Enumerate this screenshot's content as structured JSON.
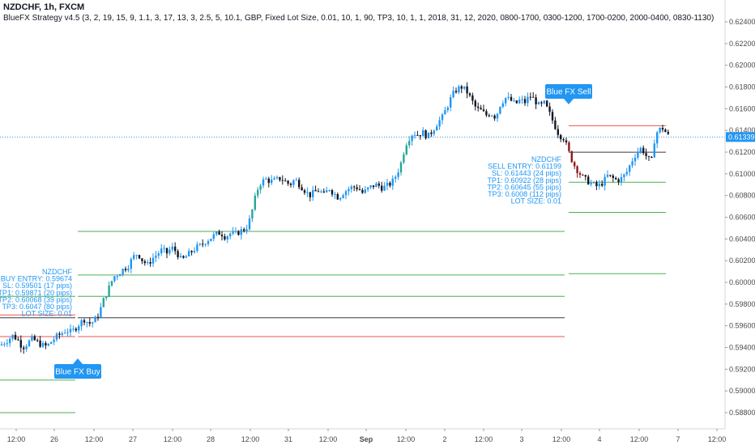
{
  "header": {
    "title": "NZDCHF, 1h, FXCM",
    "strategy": "BlueFX Strategy v4.5 (3, 2, 19, 15, 9, 1.1, 3, 17, 13, 3, 2.5, 5, 10.1, GBP, Fixed Lot Size, 0.01, 10, 1, 90, TP3, 10, 1, 1, 2018, 31, 12, 2020, 0800-1700, 0300-1200, 1700-0200, 2000-0400, 0830-1130)"
  },
  "chart_data": {
    "type": "candlestick",
    "symbol": "NZDCHF",
    "interval": "1h",
    "y_ticks": [
      "0.62400",
      "0.62200",
      "0.62000",
      "0.61800",
      "0.61600",
      "0.61400",
      "0.61200",
      "0.61000",
      "0.60800",
      "0.60600",
      "0.60400",
      "0.60200",
      "0.60000",
      "0.59800",
      "0.59600",
      "0.59400",
      "0.59200",
      "0.59000",
      "0.58800"
    ],
    "x_ticks": [
      {
        "label": "12:00",
        "bold": false
      },
      {
        "label": "26",
        "bold": false
      },
      {
        "label": "12:00",
        "bold": false
      },
      {
        "label": "27",
        "bold": false
      },
      {
        "label": "12:00",
        "bold": false
      },
      {
        "label": "28",
        "bold": false
      },
      {
        "label": "12:00",
        "bold": false
      },
      {
        "label": "31",
        "bold": false
      },
      {
        "label": "12:00",
        "bold": false
      },
      {
        "label": "Sep",
        "bold": true
      },
      {
        "label": "12:00",
        "bold": false
      },
      {
        "label": "2",
        "bold": false
      },
      {
        "label": "12:00",
        "bold": false
      },
      {
        "label": "3",
        "bold": false
      },
      {
        "label": "12:00",
        "bold": false
      },
      {
        "label": "4",
        "bold": false
      },
      {
        "label": "12:00",
        "bold": false
      },
      {
        "label": "7",
        "bold": false
      },
      {
        "label": "12:00",
        "bold": false
      }
    ],
    "ylim": [
      0.5874,
      0.6256
    ],
    "current_price": "0.61339",
    "path_points": [
      [
        0,
        0.5942
      ],
      [
        8,
        0.5946
      ],
      [
        16,
        0.5951
      ],
      [
        22,
        0.5947
      ],
      [
        28,
        0.594
      ],
      [
        34,
        0.5944
      ],
      [
        40,
        0.5948
      ],
      [
        46,
        0.5945
      ],
      [
        52,
        0.5942
      ],
      [
        58,
        0.5941
      ],
      [
        64,
        0.5946
      ],
      [
        70,
        0.595
      ],
      [
        76,
        0.5953
      ],
      [
        82,
        0.5956
      ],
      [
        88,
        0.5954
      ],
      [
        92,
        0.5957
      ],
      [
        98,
        0.5962
      ],
      [
        104,
        0.5966
      ],
      [
        110,
        0.5962
      ],
      [
        116,
        0.5964
      ],
      [
        122,
        0.5971
      ],
      [
        128,
        0.5984
      ],
      [
        134,
        0.5994
      ],
      [
        140,
        0.6005
      ],
      [
        146,
        0.6008
      ],
      [
        152,
        0.6012
      ],
      [
        158,
        0.6015
      ],
      [
        164,
        0.6023
      ],
      [
        170,
        0.6027
      ],
      [
        176,
        0.602
      ],
      [
        182,
        0.6016
      ],
      [
        188,
        0.6022
      ],
      [
        194,
        0.6026
      ],
      [
        200,
        0.603
      ],
      [
        206,
        0.6027
      ],
      [
        212,
        0.6032
      ],
      [
        218,
        0.6028
      ],
      [
        224,
        0.602
      ],
      [
        230,
        0.6024
      ],
      [
        236,
        0.6028
      ],
      [
        242,
        0.6032
      ],
      [
        248,
        0.6034
      ],
      [
        254,
        0.6038
      ],
      [
        260,
        0.6041
      ],
      [
        266,
        0.6044
      ],
      [
        272,
        0.6046
      ],
      [
        278,
        0.6042
      ],
      [
        284,
        0.6045
      ],
      [
        290,
        0.6044
      ],
      [
        296,
        0.6047
      ],
      [
        302,
        0.6049
      ],
      [
        306,
        0.6052
      ],
      [
        310,
        0.6062
      ],
      [
        314,
        0.6075
      ],
      [
        318,
        0.6086
      ],
      [
        322,
        0.6092
      ],
      [
        328,
        0.6095
      ],
      [
        334,
        0.6093
      ],
      [
        340,
        0.6094
      ],
      [
        346,
        0.6096
      ],
      [
        352,
        0.6093
      ],
      [
        358,
        0.609
      ],
      [
        364,
        0.6095
      ],
      [
        370,
        0.609
      ],
      [
        376,
        0.6085
      ],
      [
        382,
        0.608
      ],
      [
        388,
        0.6083
      ],
      [
        394,
        0.6085
      ],
      [
        400,
        0.608
      ],
      [
        406,
        0.6087
      ],
      [
        412,
        0.6082
      ],
      [
        418,
        0.6078
      ],
      [
        424,
        0.6083
      ],
      [
        430,
        0.6086
      ],
      [
        436,
        0.6088
      ],
      [
        442,
        0.6087
      ],
      [
        448,
        0.6082
      ],
      [
        454,
        0.6086
      ],
      [
        460,
        0.6089
      ],
      [
        466,
        0.609
      ],
      [
        472,
        0.6087
      ],
      [
        478,
        0.6089
      ],
      [
        484,
        0.6092
      ],
      [
        490,
        0.61
      ],
      [
        496,
        0.6112
      ],
      [
        500,
        0.6126
      ],
      [
        504,
        0.6132
      ],
      [
        510,
        0.6138
      ],
      [
        516,
        0.6136
      ],
      [
        522,
        0.6138
      ],
      [
        528,
        0.6134
      ],
      [
        534,
        0.614
      ],
      [
        540,
        0.6147
      ],
      [
        546,
        0.6152
      ],
      [
        552,
        0.6162
      ],
      [
        558,
        0.6172
      ],
      [
        564,
        0.6178
      ],
      [
        570,
        0.618
      ],
      [
        576,
        0.6176
      ],
      [
        582,
        0.6168
      ],
      [
        588,
        0.616
      ],
      [
        594,
        0.6158
      ],
      [
        600,
        0.6154
      ],
      [
        606,
        0.6156
      ],
      [
        612,
        0.6152
      ],
      [
        618,
        0.6165
      ],
      [
        624,
        0.617
      ],
      [
        630,
        0.6168
      ],
      [
        636,
        0.6164
      ],
      [
        642,
        0.6168
      ],
      [
        648,
        0.6166
      ],
      [
        654,
        0.6172
      ],
      [
        660,
        0.6168
      ],
      [
        666,
        0.6162
      ],
      [
        672,
        0.6165
      ],
      [
        678,
        0.6156
      ],
      [
        684,
        0.6146
      ],
      [
        690,
        0.6136
      ],
      [
        696,
        0.6133
      ],
      [
        702,
        0.612
      ],
      [
        708,
        0.6109
      ],
      [
        714,
        0.6102
      ],
      [
        720,
        0.6096
      ],
      [
        726,
        0.6093
      ],
      [
        732,
        0.609
      ],
      [
        738,
        0.6088
      ],
      [
        744,
        0.6092
      ],
      [
        750,
        0.6098
      ],
      [
        756,
        0.6096
      ],
      [
        762,
        0.6094
      ],
      [
        768,
        0.6096
      ],
      [
        774,
        0.6102
      ],
      [
        780,
        0.6112
      ],
      [
        786,
        0.612
      ],
      [
        792,
        0.6124
      ],
      [
        798,
        0.6116
      ],
      [
        804,
        0.611
      ],
      [
        808,
        0.6132
      ],
      [
        812,
        0.614
      ],
      [
        818,
        0.6142
      ],
      [
        822,
        0.6138
      ],
      [
        826,
        0.6134
      ]
    ],
    "trade_lines": [
      {
        "x1": 0,
        "x2": 93,
        "price": 0.59674,
        "kind": "entry"
      },
      {
        "x1": 0,
        "x2": 93,
        "price": 0.59501,
        "kind": "sl"
      },
      {
        "x1": 0,
        "x2": 93,
        "price": 0.59871,
        "kind": "tp"
      },
      {
        "x1": 0,
        "x2": 93,
        "price": 0.597,
        "kind": "sl"
      },
      {
        "x1": 0,
        "x2": 93,
        "price": 0.591,
        "kind": "tp"
      },
      {
        "x1": 0,
        "x2": 93,
        "price": 0.588,
        "kind": "tp"
      },
      {
        "x1": 96,
        "x2": 697,
        "price": 0.59674,
        "kind": "entry"
      },
      {
        "x1": 96,
        "x2": 697,
        "price": 0.59501,
        "kind": "sl"
      },
      {
        "x1": 96,
        "x2": 697,
        "price": 0.59871,
        "kind": "tp"
      },
      {
        "x1": 96,
        "x2": 697,
        "price": 0.60068,
        "kind": "tp"
      },
      {
        "x1": 96,
        "x2": 697,
        "price": 0.6047,
        "kind": "tp"
      },
      {
        "x1": 702,
        "x2": 822,
        "price": 0.61199,
        "kind": "entry"
      },
      {
        "x1": 702,
        "x2": 822,
        "price": 0.61443,
        "kind": "sl"
      },
      {
        "x1": 702,
        "x2": 822,
        "price": 0.60922,
        "kind": "tp"
      },
      {
        "x1": 702,
        "x2": 822,
        "price": 0.60645,
        "kind": "tp"
      },
      {
        "x1": 702,
        "x2": 822,
        "price": 0.6008,
        "kind": "tp"
      }
    ],
    "buy_info": [
      "NZDCHF",
      "BUY ENTRY: 0.59674",
      "SL: 0.59501 (17 pips)",
      "TP1: 0.59871 (20 pips)",
      "TP2: 0.60068 (39 pips)",
      "TP3: 0.6047 (80 pips)",
      "LOT SIZE: 0.01"
    ],
    "sell_info": [
      "NZDCHF",
      "SELL ENTRY: 0.61199",
      "SL: 0.61443 (24 pips)",
      "TP1: 0.60922 (28 pips)",
      "TP2: 0.60645 (55 pips)",
      "TP3: 0.6008 (112 pips)",
      "LOT SIZE: 0.01"
    ],
    "signals": [
      {
        "label": "Blue FX Buy",
        "x": 96,
        "price": 0.5931,
        "dir": "up"
      },
      {
        "label": "Blue FX Sell",
        "x": 702,
        "price": 0.618,
        "dir": "down"
      }
    ]
  },
  "colors": {
    "up": "#2196f3",
    "down": "#131722",
    "up_strong": "#26a69a",
    "down_strong": "#8b1a1a",
    "entry": "#363a45",
    "sl": "#ef5350",
    "tp": "#4caf50",
    "info": "#2196f3",
    "signal": "#2196f3",
    "price_tag": "#2196f3"
  }
}
